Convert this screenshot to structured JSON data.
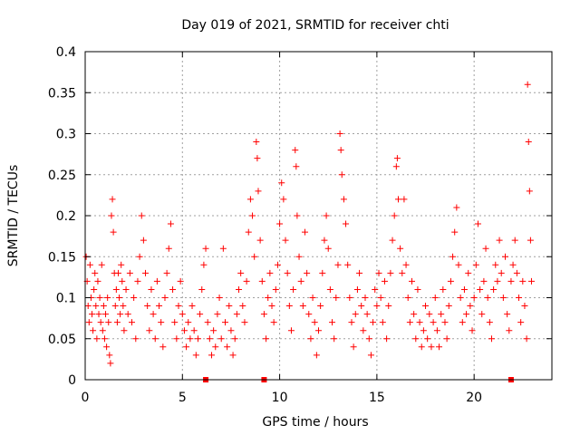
{
  "chart_data": {
    "type": "scatter",
    "title": "Day 019 of 2021, SRMTID for receiver chti",
    "xlabel": "GPS time / hours",
    "ylabel": "SRMTID / TECUs",
    "xlim": [
      0,
      24
    ],
    "ylim": [
      0,
      0.4
    ],
    "x_ticks": [
      "0",
      "5",
      "10",
      "15",
      "20"
    ],
    "y_ticks": [
      "0",
      "0.05",
      "0.1",
      "0.15",
      "0.2",
      "0.25",
      "0.3",
      "0.35",
      "0.4"
    ],
    "grid": true,
    "legend": "none",
    "marker": "plus",
    "color": "#ff0000",
    "gap_markers_x": [
      6.2,
      9.2,
      21.9
    ],
    "points": [
      [
        0.05,
        0.15
      ],
      [
        0.1,
        0.12
      ],
      [
        0.15,
        0.09
      ],
      [
        0.2,
        0.07
      ],
      [
        0.25,
        0.14
      ],
      [
        0.3,
        0.1
      ],
      [
        0.35,
        0.08
      ],
      [
        0.4,
        0.06
      ],
      [
        0.45,
        0.11
      ],
      [
        0.5,
        0.13
      ],
      [
        0.55,
        0.09
      ],
      [
        0.6,
        0.05
      ],
      [
        0.65,
        0.12
      ],
      [
        0.7,
        0.08
      ],
      [
        0.75,
        0.1
      ],
      [
        0.8,
        0.07
      ],
      [
        0.85,
        0.14
      ],
      [
        0.9,
        0.06
      ],
      [
        0.95,
        0.09
      ],
      [
        1.0,
        0.05
      ],
      [
        1.05,
        0.08
      ],
      [
        1.1,
        0.04
      ],
      [
        1.15,
        0.1
      ],
      [
        1.2,
        0.07
      ],
      [
        1.25,
        0.03
      ],
      [
        1.3,
        0.02
      ],
      [
        1.35,
        0.2
      ],
      [
        1.4,
        0.22
      ],
      [
        1.45,
        0.18
      ],
      [
        1.5,
        0.13
      ],
      [
        1.55,
        0.09
      ],
      [
        1.6,
        0.11
      ],
      [
        1.65,
        0.07
      ],
      [
        1.7,
        0.13
      ],
      [
        1.75,
        0.1
      ],
      [
        1.8,
        0.08
      ],
      [
        1.85,
        0.14
      ],
      [
        1.9,
        0.12
      ],
      [
        1.95,
        0.09
      ],
      [
        2.0,
        0.06
      ],
      [
        2.1,
        0.11
      ],
      [
        2.2,
        0.08
      ],
      [
        2.3,
        0.13
      ],
      [
        2.4,
        0.07
      ],
      [
        2.5,
        0.1
      ],
      [
        2.6,
        0.05
      ],
      [
        2.7,
        0.12
      ],
      [
        2.8,
        0.15
      ],
      [
        2.9,
        0.2
      ],
      [
        3.0,
        0.17
      ],
      [
        3.1,
        0.13
      ],
      [
        3.2,
        0.09
      ],
      [
        3.3,
        0.06
      ],
      [
        3.4,
        0.11
      ],
      [
        3.5,
        0.08
      ],
      [
        3.6,
        0.05
      ],
      [
        3.7,
        0.12
      ],
      [
        3.8,
        0.09
      ],
      [
        3.9,
        0.07
      ],
      [
        4.0,
        0.04
      ],
      [
        4.1,
        0.1
      ],
      [
        4.2,
        0.13
      ],
      [
        4.3,
        0.16
      ],
      [
        4.4,
        0.19
      ],
      [
        4.5,
        0.11
      ],
      [
        4.6,
        0.07
      ],
      [
        4.7,
        0.05
      ],
      [
        4.8,
        0.09
      ],
      [
        4.9,
        0.12
      ],
      [
        5.0,
        0.08
      ],
      [
        5.1,
        0.06
      ],
      [
        5.2,
        0.04
      ],
      [
        5.3,
        0.07
      ],
      [
        5.4,
        0.05
      ],
      [
        5.5,
        0.09
      ],
      [
        5.6,
        0.06
      ],
      [
        5.7,
        0.03
      ],
      [
        5.8,
        0.05
      ],
      [
        5.9,
        0.08
      ],
      [
        6.0,
        0.11
      ],
      [
        6.1,
        0.14
      ],
      [
        6.2,
        0.16
      ],
      [
        6.3,
        0.07
      ],
      [
        6.4,
        0.05
      ],
      [
        6.5,
        0.03
      ],
      [
        6.6,
        0.06
      ],
      [
        6.7,
        0.04
      ],
      [
        6.8,
        0.08
      ],
      [
        6.9,
        0.1
      ],
      [
        7.0,
        0.05
      ],
      [
        7.1,
        0.16
      ],
      [
        7.2,
        0.07
      ],
      [
        7.3,
        0.04
      ],
      [
        7.4,
        0.09
      ],
      [
        7.5,
        0.06
      ],
      [
        7.6,
        0.03
      ],
      [
        7.7,
        0.05
      ],
      [
        7.8,
        0.08
      ],
      [
        7.9,
        0.11
      ],
      [
        8.0,
        0.13
      ],
      [
        8.1,
        0.09
      ],
      [
        8.2,
        0.07
      ],
      [
        8.3,
        0.12
      ],
      [
        8.4,
        0.18
      ],
      [
        8.5,
        0.22
      ],
      [
        8.6,
        0.2
      ],
      [
        8.7,
        0.15
      ],
      [
        8.8,
        0.29
      ],
      [
        8.85,
        0.27
      ],
      [
        8.9,
        0.23
      ],
      [
        9.0,
        0.17
      ],
      [
        9.1,
        0.12
      ],
      [
        9.2,
        0.08
      ],
      [
        9.3,
        0.05
      ],
      [
        9.4,
        0.1
      ],
      [
        9.5,
        0.13
      ],
      [
        9.6,
        0.09
      ],
      [
        9.7,
        0.07
      ],
      [
        9.8,
        0.11
      ],
      [
        9.9,
        0.14
      ],
      [
        10.0,
        0.19
      ],
      [
        10.1,
        0.24
      ],
      [
        10.2,
        0.22
      ],
      [
        10.3,
        0.17
      ],
      [
        10.4,
        0.13
      ],
      [
        10.5,
        0.09
      ],
      [
        10.6,
        0.06
      ],
      [
        10.7,
        0.11
      ],
      [
        10.8,
        0.28
      ],
      [
        10.85,
        0.26
      ],
      [
        10.9,
        0.2
      ],
      [
        11.0,
        0.15
      ],
      [
        11.1,
        0.12
      ],
      [
        11.2,
        0.09
      ],
      [
        11.3,
        0.18
      ],
      [
        11.4,
        0.13
      ],
      [
        11.5,
        0.08
      ],
      [
        11.6,
        0.05
      ],
      [
        11.7,
        0.1
      ],
      [
        11.8,
        0.07
      ],
      [
        11.9,
        0.03
      ],
      [
        12.0,
        0.06
      ],
      [
        12.1,
        0.09
      ],
      [
        12.2,
        0.13
      ],
      [
        12.3,
        0.17
      ],
      [
        12.4,
        0.2
      ],
      [
        12.5,
        0.16
      ],
      [
        12.6,
        0.11
      ],
      [
        12.7,
        0.07
      ],
      [
        12.8,
        0.05
      ],
      [
        12.9,
        0.1
      ],
      [
        13.0,
        0.14
      ],
      [
        13.1,
        0.3
      ],
      [
        13.15,
        0.28
      ],
      [
        13.2,
        0.25
      ],
      [
        13.3,
        0.22
      ],
      [
        13.4,
        0.19
      ],
      [
        13.5,
        0.14
      ],
      [
        13.6,
        0.1
      ],
      [
        13.7,
        0.07
      ],
      [
        13.8,
        0.04
      ],
      [
        13.9,
        0.08
      ],
      [
        14.0,
        0.11
      ],
      [
        14.1,
        0.13
      ],
      [
        14.2,
        0.09
      ],
      [
        14.3,
        0.06
      ],
      [
        14.4,
        0.1
      ],
      [
        14.5,
        0.08
      ],
      [
        14.6,
        0.05
      ],
      [
        14.7,
        0.03
      ],
      [
        14.8,
        0.07
      ],
      [
        14.9,
        0.11
      ],
      [
        15.0,
        0.09
      ],
      [
        15.1,
        0.13
      ],
      [
        15.2,
        0.1
      ],
      [
        15.3,
        0.07
      ],
      [
        15.4,
        0.12
      ],
      [
        15.5,
        0.05
      ],
      [
        15.6,
        0.09
      ],
      [
        15.7,
        0.13
      ],
      [
        15.8,
        0.17
      ],
      [
        15.9,
        0.2
      ],
      [
        16.0,
        0.26
      ],
      [
        16.05,
        0.27
      ],
      [
        16.1,
        0.22
      ],
      [
        16.2,
        0.16
      ],
      [
        16.3,
        0.13
      ],
      [
        16.4,
        0.22
      ],
      [
        16.5,
        0.14
      ],
      [
        16.6,
        0.1
      ],
      [
        16.7,
        0.07
      ],
      [
        16.8,
        0.12
      ],
      [
        16.9,
        0.08
      ],
      [
        17.0,
        0.05
      ],
      [
        17.1,
        0.11
      ],
      [
        17.2,
        0.07
      ],
      [
        17.3,
        0.04
      ],
      [
        17.4,
        0.06
      ],
      [
        17.5,
        0.09
      ],
      [
        17.6,
        0.05
      ],
      [
        17.7,
        0.08
      ],
      [
        17.8,
        0.04
      ],
      [
        17.9,
        0.07
      ],
      [
        18.0,
        0.1
      ],
      [
        18.1,
        0.06
      ],
      [
        18.2,
        0.04
      ],
      [
        18.3,
        0.08
      ],
      [
        18.4,
        0.11
      ],
      [
        18.5,
        0.07
      ],
      [
        18.6,
        0.05
      ],
      [
        18.7,
        0.09
      ],
      [
        18.8,
        0.12
      ],
      [
        18.9,
        0.15
      ],
      [
        19.0,
        0.18
      ],
      [
        19.1,
        0.21
      ],
      [
        19.2,
        0.14
      ],
      [
        19.3,
        0.1
      ],
      [
        19.4,
        0.07
      ],
      [
        19.5,
        0.11
      ],
      [
        19.6,
        0.08
      ],
      [
        19.7,
        0.13
      ],
      [
        19.8,
        0.09
      ],
      [
        19.9,
        0.06
      ],
      [
        20.0,
        0.1
      ],
      [
        20.1,
        0.14
      ],
      [
        20.2,
        0.19
      ],
      [
        20.3,
        0.11
      ],
      [
        20.4,
        0.08
      ],
      [
        20.5,
        0.12
      ],
      [
        20.6,
        0.16
      ],
      [
        20.7,
        0.1
      ],
      [
        20.8,
        0.07
      ],
      [
        20.9,
        0.05
      ],
      [
        21.0,
        0.11
      ],
      [
        21.1,
        0.14
      ],
      [
        21.2,
        0.12
      ],
      [
        21.3,
        0.17
      ],
      [
        21.4,
        0.13
      ],
      [
        21.5,
        0.1
      ],
      [
        21.6,
        0.15
      ],
      [
        21.7,
        0.08
      ],
      [
        21.8,
        0.06
      ],
      [
        21.9,
        0.12
      ],
      [
        22.0,
        0.14
      ],
      [
        22.1,
        0.17
      ],
      [
        22.2,
        0.13
      ],
      [
        22.3,
        0.1
      ],
      [
        22.4,
        0.07
      ],
      [
        22.5,
        0.12
      ],
      [
        22.6,
        0.09
      ],
      [
        22.7,
        0.05
      ],
      [
        22.75,
        0.36
      ],
      [
        22.8,
        0.29
      ],
      [
        22.85,
        0.23
      ],
      [
        22.9,
        0.17
      ],
      [
        22.95,
        0.12
      ]
    ]
  }
}
